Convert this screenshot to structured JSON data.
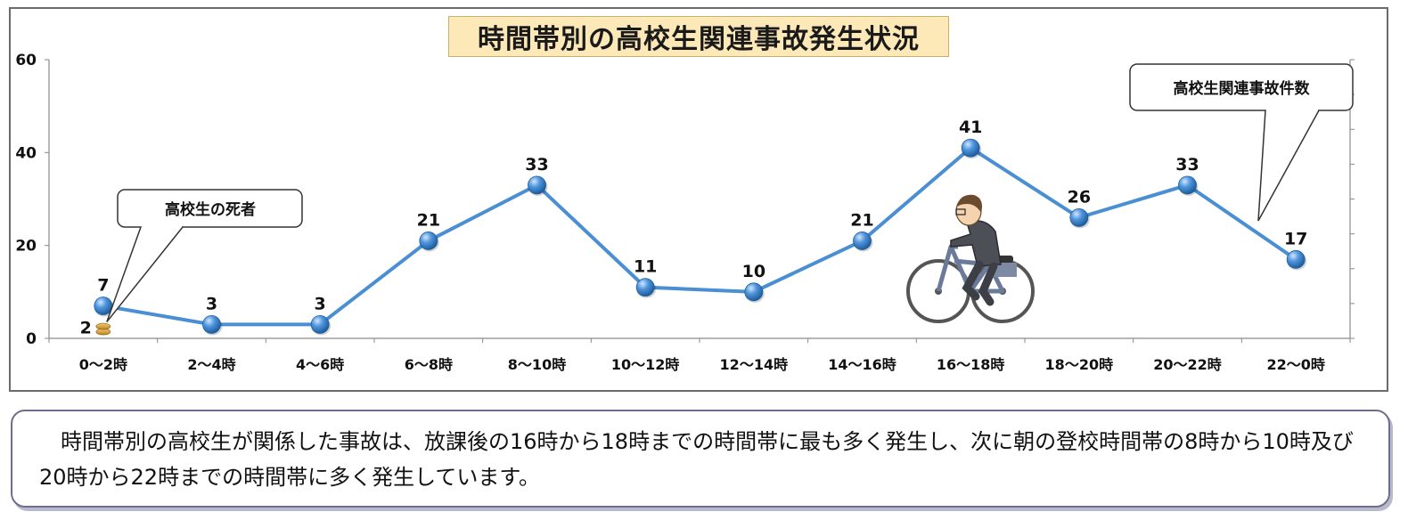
{
  "title": "時間帯別の高校生関連事故発生状況",
  "callouts": {
    "deaths": "高校生の死者",
    "accidents": "高校生関連事故件数"
  },
  "description": "時間帯別の高校生が関係した事故は、放課後の16時から18時までの時間帯に最も多く発生し、次に朝の登校時間帯の8時から10時及び20時から22時までの時間帯に多く発生しています。",
  "colors": {
    "line": "#4a8fd4",
    "marker": "#3b7fc4",
    "death_marker": "#d9a23a",
    "title_bg": "#fde9b8"
  },
  "chart_data": {
    "type": "line",
    "title": "時間帯別の高校生関連事故発生状況",
    "categories": [
      "0～2時",
      "2～4時",
      "4～6時",
      "6～8時",
      "8～10時",
      "10～12時",
      "12～14時",
      "14～16時",
      "16～18時",
      "18～20時",
      "20～22時",
      "22～0時"
    ],
    "series": [
      {
        "name": "高校生関連事故件数",
        "values": [
          7,
          3,
          3,
          21,
          33,
          11,
          10,
          21,
          41,
          26,
          33,
          17
        ]
      },
      {
        "name": "高校生の死者",
        "values": [
          2,
          null,
          null,
          null,
          null,
          null,
          null,
          null,
          null,
          null,
          null,
          null
        ]
      }
    ],
    "ylim": [
      0,
      60
    ],
    "yticks": [
      0,
      20,
      40,
      60
    ],
    "grid": false,
    "xlabel": "",
    "ylabel": ""
  }
}
